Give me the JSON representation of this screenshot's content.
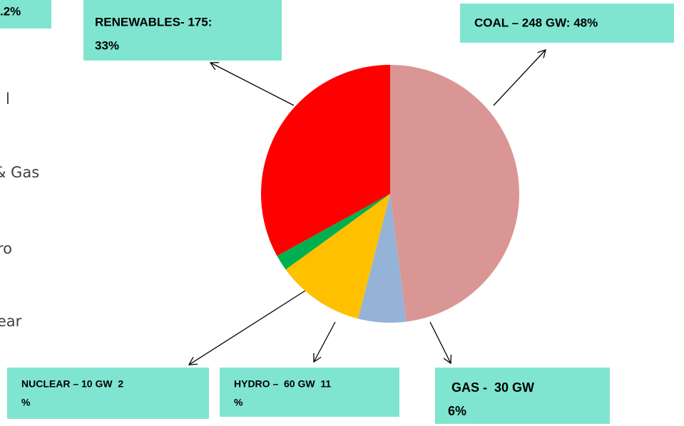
{
  "chart_data": {
    "type": "pie",
    "values": [
      48,
      6,
      11,
      2,
      33
    ],
    "value_labels": [
      [
        "COAL – 248 GW: 48%"
      ],
      [
        " GAS -  30 GW",
        "6%"
      ],
      [
        "HYDRO –  60 GW  11",
        "%"
      ],
      [
        "NUCLEAR – 10 GW  2",
        "%"
      ],
      [
        "RENEWABLES- 175:",
        "33%"
      ]
    ],
    "colors": [
      "#d99694",
      "#95b3d7",
      "#ffc000",
      "#00b050",
      "#ff0000"
    ],
    "corner_label": ".2%",
    "side_text": [
      "l",
      "& Gas",
      "ro",
      "lear"
    ]
  }
}
